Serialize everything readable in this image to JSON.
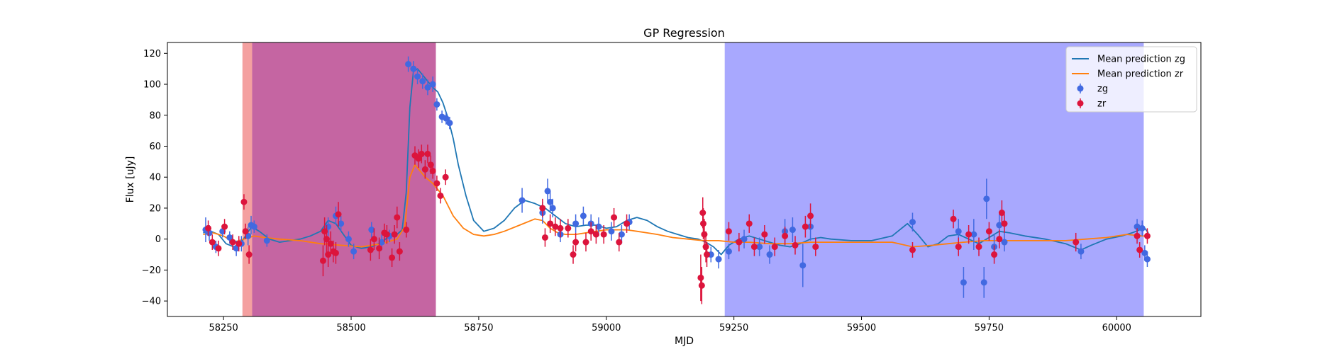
{
  "chart_data": {
    "type": "scatter",
    "title": "GP Regression",
    "xlabel": "MJD",
    "ylabel": "Flux [uJy]",
    "xlim": [
      58140,
      60165
    ],
    "ylim": [
      -50,
      127
    ],
    "xticks": [
      58250,
      58500,
      58750,
      59000,
      59250,
      59500,
      59750,
      60000
    ],
    "yticks": [
      -40,
      -20,
      0,
      20,
      40,
      60,
      80,
      100,
      120
    ],
    "grid": false,
    "legend_position": "top-right",
    "shaded_regions": [
      {
        "x0": 58287,
        "x1": 58306,
        "color": "#f4a0a0"
      },
      {
        "x0": 58306,
        "x1": 58666,
        "color": "#c565a2"
      },
      {
        "x0": 59232,
        "x1": 60053,
        "color": "#a8a8fe"
      }
    ],
    "series": [
      {
        "name": "Mean prediction zg",
        "kind": "line",
        "color": "#1f77b4",
        "x": [
          58210,
          58225,
          58240,
          58255,
          58270,
          58285,
          58295,
          58305,
          58320,
          58340,
          58360,
          58380,
          58400,
          58420,
          58440,
          58455,
          58470,
          58485,
          58500,
          58520,
          58540,
          58560,
          58575,
          58590,
          58600,
          58608,
          58615,
          58622,
          58630,
          58640,
          58650,
          58660,
          58670,
          58680,
          58690,
          58700,
          58710,
          58725,
          58740,
          58760,
          58780,
          58800,
          58820,
          58840,
          58860,
          58880,
          58900,
          58920,
          58940,
          58960,
          58980,
          59000,
          59020,
          59040,
          59060,
          59080,
          59100,
          59120,
          59140,
          59160,
          59180,
          59195,
          59210,
          59225,
          59240,
          59260,
          59280,
          59300,
          59320,
          59340,
          59360,
          59380,
          59400,
          59420,
          59440,
          59480,
          59520,
          59560,
          59590,
          59610,
          59630,
          59650,
          59670,
          59690,
          59710,
          59730,
          59750,
          59770,
          59790,
          59820,
          59860,
          59900,
          59930,
          59950,
          59980,
          60010,
          60030,
          60045,
          60055,
          60062
        ],
        "y": [
          4,
          5,
          3,
          -3,
          -5,
          -2,
          3,
          8,
          5,
          0,
          -2,
          -1,
          0,
          2,
          5,
          12,
          10,
          3,
          -4,
          -6,
          -5,
          -2,
          2,
          3,
          6,
          30,
          85,
          108,
          110,
          106,
          102,
          98,
          95,
          88,
          78,
          65,
          48,
          28,
          12,
          5,
          7,
          12,
          20,
          25,
          23,
          20,
          15,
          10,
          8,
          9,
          9,
          7,
          8,
          12,
          14,
          12,
          8,
          5,
          3,
          1,
          0,
          -2,
          -5,
          -10,
          -4,
          0,
          2,
          0,
          -2,
          -4,
          -5,
          -3,
          0,
          1,
          0,
          -1,
          -1,
          2,
          10,
          3,
          -5,
          -3,
          2,
          3,
          0,
          -3,
          1,
          5,
          4,
          2,
          0,
          -3,
          -7,
          -4,
          0,
          2,
          4,
          6,
          7,
          4
        ]
      },
      {
        "name": "Mean prediction zr",
        "kind": "line",
        "color": "#ff7f0e",
        "x": [
          58210,
          58230,
          58250,
          58270,
          58290,
          58310,
          58330,
          58360,
          58400,
          58440,
          58480,
          58520,
          58560,
          58590,
          58605,
          58615,
          58625,
          58635,
          58645,
          58660,
          58680,
          58700,
          58720,
          58740,
          58760,
          58780,
          58800,
          58830,
          58860,
          58875,
          58890,
          58905,
          58920,
          58940,
          58960,
          58980,
          59000,
          59020,
          59040,
          59060,
          59080,
          59100,
          59130,
          59160,
          59190,
          59220,
          59250,
          59280,
          59320,
          59360,
          59400,
          59440,
          59480,
          59520,
          59560,
          59600,
          59640,
          59670,
          59700,
          59740,
          59780,
          59820,
          59860,
          59900,
          59940,
          59980,
          60020,
          60050,
          60062
        ],
        "y": [
          3,
          4,
          2,
          -2,
          0,
          2,
          1,
          0,
          -1,
          -3,
          -4,
          -5,
          -3,
          0,
          8,
          40,
          48,
          44,
          40,
          36,
          28,
          15,
          7,
          3,
          2,
          3,
          5,
          9,
          13,
          12,
          7,
          4,
          3,
          3,
          4,
          5,
          6,
          6,
          6,
          5,
          4,
          3,
          1,
          0,
          -1,
          -1,
          -2,
          -2,
          -3,
          -3,
          -2,
          -2,
          -2,
          -2,
          -2,
          -5,
          -4,
          -3,
          -2,
          -1,
          -1,
          -1,
          -1,
          -1,
          0,
          1,
          3,
          2,
          2
        ]
      },
      {
        "name": "zg",
        "kind": "errorbar",
        "color": "#4169e1",
        "points": [
          [
            58215,
            6,
            8
          ],
          [
            58222,
            4,
            5
          ],
          [
            58235,
            -5,
            4
          ],
          [
            58248,
            5,
            4
          ],
          [
            58262,
            1,
            4
          ],
          [
            58275,
            -6,
            5
          ],
          [
            58285,
            -3,
            5
          ],
          [
            58298,
            2,
            6
          ],
          [
            58304,
            9,
            6
          ],
          [
            58310,
            8,
            4
          ],
          [
            58335,
            -1,
            4
          ],
          [
            58455,
            8,
            6
          ],
          [
            58470,
            15,
            6
          ],
          [
            58480,
            10,
            5
          ],
          [
            58495,
            0,
            5
          ],
          [
            58505,
            -8,
            5
          ],
          [
            58540,
            6,
            5
          ],
          [
            58560,
            -2,
            5
          ],
          [
            58575,
            2,
            4
          ],
          [
            58612,
            113,
            5
          ],
          [
            58622,
            110,
            5
          ],
          [
            58630,
            105,
            5
          ],
          [
            58640,
            102,
            5
          ],
          [
            58650,
            98,
            5
          ],
          [
            58660,
            100,
            5
          ],
          [
            58668,
            87,
            4
          ],
          [
            58678,
            79,
            4
          ],
          [
            58686,
            78,
            4
          ],
          [
            58693,
            75,
            4
          ],
          [
            58835,
            25,
            8
          ],
          [
            58875,
            17,
            7
          ],
          [
            58885,
            31,
            8
          ],
          [
            58890,
            24,
            7
          ],
          [
            58895,
            20,
            6
          ],
          [
            58910,
            3,
            5
          ],
          [
            58940,
            10,
            6
          ],
          [
            58955,
            15,
            6
          ],
          [
            58970,
            10,
            6
          ],
          [
            58985,
            8,
            6
          ],
          [
            59010,
            5,
            6
          ],
          [
            59030,
            3,
            6
          ],
          [
            59045,
            11,
            5
          ],
          [
            59205,
            -10,
            5
          ],
          [
            59220,
            -13,
            6
          ],
          [
            59240,
            -8,
            5
          ],
          [
            59270,
            0,
            6
          ],
          [
            59300,
            -5,
            6
          ],
          [
            59320,
            -10,
            6
          ],
          [
            59350,
            5,
            8
          ],
          [
            59365,
            6,
            8
          ],
          [
            59385,
            -17,
            14
          ],
          [
            59400,
            8,
            9
          ],
          [
            59600,
            11,
            6
          ],
          [
            59690,
            5,
            8
          ],
          [
            59700,
            -28,
            10
          ],
          [
            59720,
            3,
            10
          ],
          [
            59740,
            -28,
            10
          ],
          [
            59745,
            26,
            13
          ],
          [
            59760,
            -5,
            8
          ],
          [
            59770,
            9,
            7
          ],
          [
            59780,
            -2,
            6
          ],
          [
            59930,
            -8,
            5
          ],
          [
            60040,
            8,
            5
          ],
          [
            60050,
            7,
            5
          ],
          [
            60055,
            -9,
            5
          ],
          [
            60060,
            -13,
            5
          ]
        ]
      },
      {
        "name": "zr",
        "kind": "errorbar",
        "color": "#dc143c",
        "points": [
          [
            58220,
            7,
            5
          ],
          [
            58228,
            -2,
            5
          ],
          [
            58240,
            -6,
            5
          ],
          [
            58252,
            8,
            5
          ],
          [
            58268,
            -2,
            5
          ],
          [
            58280,
            -3,
            5
          ],
          [
            58290,
            24,
            5
          ],
          [
            58293,
            5,
            5
          ],
          [
            58300,
            -10,
            6
          ],
          [
            58445,
            -14,
            10
          ],
          [
            58448,
            5,
            9
          ],
          [
            58452,
            0,
            9
          ],
          [
            58455,
            -10,
            8
          ],
          [
            58460,
            -3,
            8
          ],
          [
            58465,
            -8,
            7
          ],
          [
            58470,
            -9,
            7
          ],
          [
            58475,
            16,
            8
          ],
          [
            58538,
            -7,
            7
          ],
          [
            58545,
            0,
            7
          ],
          [
            58555,
            -6,
            7
          ],
          [
            58565,
            4,
            6
          ],
          [
            58570,
            3,
            6
          ],
          [
            58580,
            -12,
            6
          ],
          [
            58585,
            3,
            6
          ],
          [
            58590,
            14,
            7
          ],
          [
            58595,
            -8,
            6
          ],
          [
            58608,
            6,
            5
          ],
          [
            58625,
            54,
            6
          ],
          [
            58632,
            52,
            6
          ],
          [
            58638,
            55,
            6
          ],
          [
            58645,
            45,
            6
          ],
          [
            58650,
            55,
            6
          ],
          [
            58656,
            48,
            6
          ],
          [
            58660,
            44,
            5
          ],
          [
            58668,
            36,
            5
          ],
          [
            58675,
            28,
            5
          ],
          [
            58685,
            40,
            5
          ],
          [
            58875,
            20,
            6
          ],
          [
            58880,
            1,
            6
          ],
          [
            58890,
            10,
            6
          ],
          [
            58900,
            8,
            6
          ],
          [
            58910,
            7,
            6
          ],
          [
            58925,
            7,
            6
          ],
          [
            58935,
            -10,
            6
          ],
          [
            58940,
            -2,
            6
          ],
          [
            58960,
            -2,
            6
          ],
          [
            58970,
            5,
            6
          ],
          [
            58980,
            3,
            6
          ],
          [
            58995,
            3,
            6
          ],
          [
            59015,
            14,
            6
          ],
          [
            59025,
            -2,
            6
          ],
          [
            59040,
            10,
            6
          ],
          [
            59185,
            -25,
            15
          ],
          [
            59187,
            -30,
            12
          ],
          [
            59189,
            17,
            10
          ],
          [
            59190,
            10,
            10
          ],
          [
            59192,
            3,
            10
          ],
          [
            59195,
            -5,
            10
          ],
          [
            59197,
            -10,
            8
          ],
          [
            59240,
            5,
            6
          ],
          [
            59260,
            -2,
            6
          ],
          [
            59280,
            10,
            6
          ],
          [
            59290,
            -5,
            6
          ],
          [
            59310,
            3,
            6
          ],
          [
            59330,
            -5,
            6
          ],
          [
            59350,
            2,
            6
          ],
          [
            59370,
            -4,
            6
          ],
          [
            59390,
            8,
            7
          ],
          [
            59400,
            15,
            8
          ],
          [
            59410,
            -5,
            6
          ],
          [
            59600,
            -7,
            5
          ],
          [
            59680,
            13,
            6
          ],
          [
            59690,
            -5,
            6
          ],
          [
            59710,
            3,
            6
          ],
          [
            59730,
            -5,
            6
          ],
          [
            59750,
            5,
            6
          ],
          [
            59760,
            -10,
            6
          ],
          [
            59770,
            0,
            6
          ],
          [
            59775,
            17,
            8
          ],
          [
            59780,
            10,
            6
          ],
          [
            59920,
            -2,
            6
          ],
          [
            60040,
            2,
            5
          ],
          [
            60045,
            -7,
            5
          ],
          [
            60060,
            2,
            5
          ]
        ]
      }
    ]
  }
}
